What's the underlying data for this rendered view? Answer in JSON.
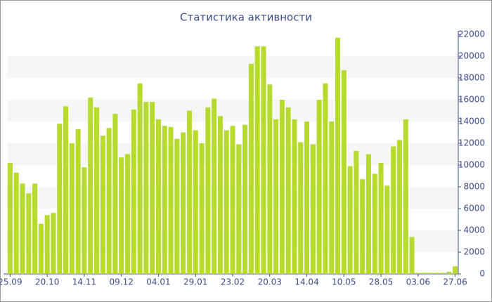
{
  "chart_data": {
    "type": "bar",
    "title": "Статистика активности",
    "categories": [
      "25.09",
      null,
      null,
      null,
      null,
      null,
      "20.10",
      null,
      null,
      null,
      null,
      null,
      "14.11",
      null,
      null,
      null,
      null,
      null,
      "09.12",
      null,
      null,
      null,
      null,
      null,
      "04.01",
      null,
      null,
      null,
      null,
      null,
      "29.01",
      null,
      null,
      null,
      null,
      null,
      "23.02",
      null,
      null,
      null,
      null,
      null,
      "20.03",
      null,
      null,
      null,
      null,
      null,
      "14.04",
      null,
      null,
      null,
      null,
      null,
      "10.05",
      null,
      null,
      null,
      null,
      null,
      "28.05",
      null,
      null,
      null,
      null,
      null,
      "03.06",
      null,
      null,
      null,
      null,
      null,
      "27.06"
    ],
    "values": [
      10200,
      9300,
      8300,
      7400,
      8300,
      4600,
      5400,
      5600,
      13800,
      15400,
      12000,
      13300,
      9800,
      16200,
      15300,
      12700,
      13400,
      14700,
      10700,
      11000,
      15100,
      17500,
      15800,
      15800,
      14200,
      13600,
      13500,
      12400,
      13000,
      15000,
      13200,
      12000,
      15300,
      16100,
      14500,
      13200,
      13600,
      11900,
      13700,
      19300,
      20900,
      20900,
      17400,
      14200,
      16000,
      15300,
      14200,
      12100,
      14000,
      11900,
      16000,
      17500,
      14000,
      21700,
      18700,
      9900,
      11300,
      8700,
      11000,
      9200,
      10200,
      8100,
      11700,
      12300,
      14200,
      3400,
      100,
      100,
      100,
      100,
      100,
      200,
      700
    ],
    "color": "#b7da2e",
    "ylim": [
      0,
      22000
    ],
    "yticks": [
      0,
      2000,
      4000,
      6000,
      8000,
      10000,
      12000,
      14000,
      16000,
      18000,
      20000,
      22000
    ],
    "grid": true
  }
}
